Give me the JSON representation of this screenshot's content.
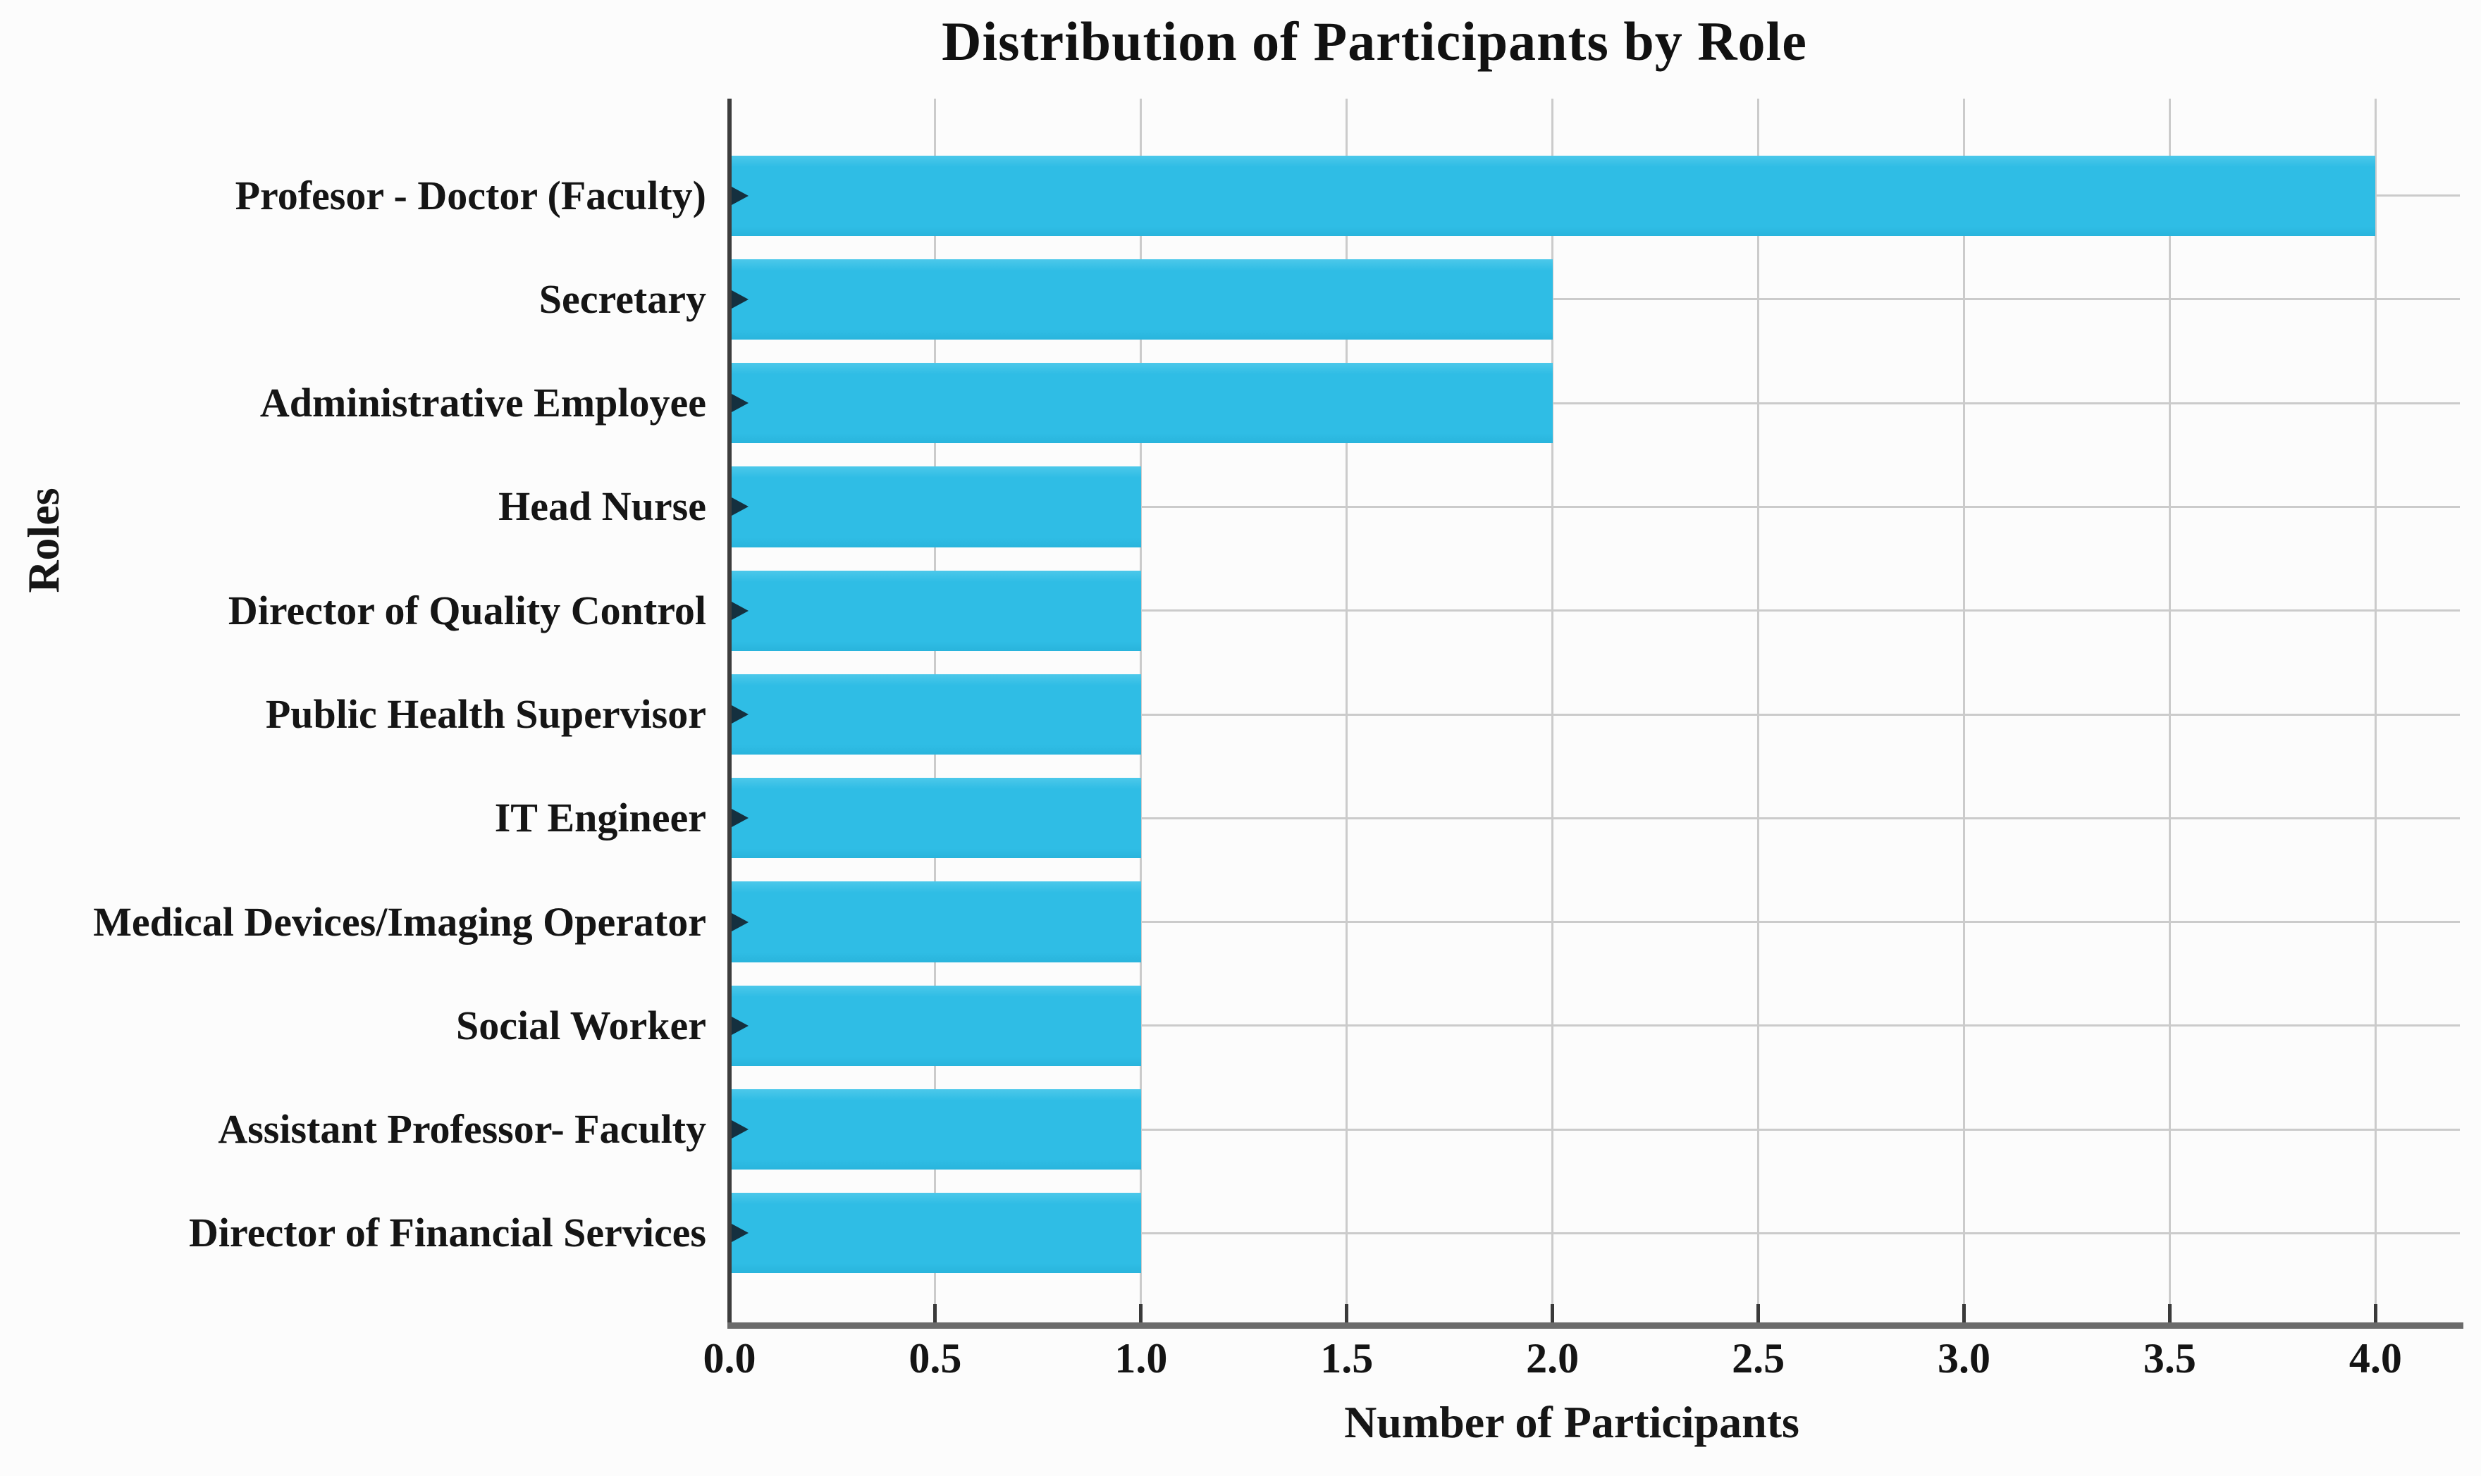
{
  "chart_data": {
    "type": "bar",
    "orientation": "horizontal",
    "title": "Distribution of Participants by Role",
    "xlabel": "Number of Participants",
    "ylabel": "Roles",
    "categories": [
      "Profesor - Doctor (Faculty)",
      "Secretary",
      "Administrative Employee",
      "Head Nurse",
      "Director of Quality Control",
      "Public Health Supervisor",
      "IT Engineer",
      "Medical Devices/Imaging Operator",
      "Social Worker",
      "Assistant Professor- Faculty",
      "Director of Financial Services"
    ],
    "values": [
      4,
      2,
      2,
      1,
      1,
      1,
      1,
      1,
      1,
      1,
      1
    ],
    "xticks": [
      0.0,
      0.5,
      1.0,
      1.5,
      2.0,
      2.5,
      3.0,
      3.5,
      4.0
    ],
    "xtick_labels": [
      "0.0",
      "0.5",
      "1.0",
      "1.5",
      "2.0",
      "2.5",
      "3.0",
      "3.5",
      "4.0"
    ],
    "xlim": [
      0,
      4.205
    ],
    "grid": true,
    "legend_position": "none",
    "bar_color": "#2fbde5",
    "grid_color": "#cbcbcb",
    "background_color": "#fcfcfc"
  }
}
